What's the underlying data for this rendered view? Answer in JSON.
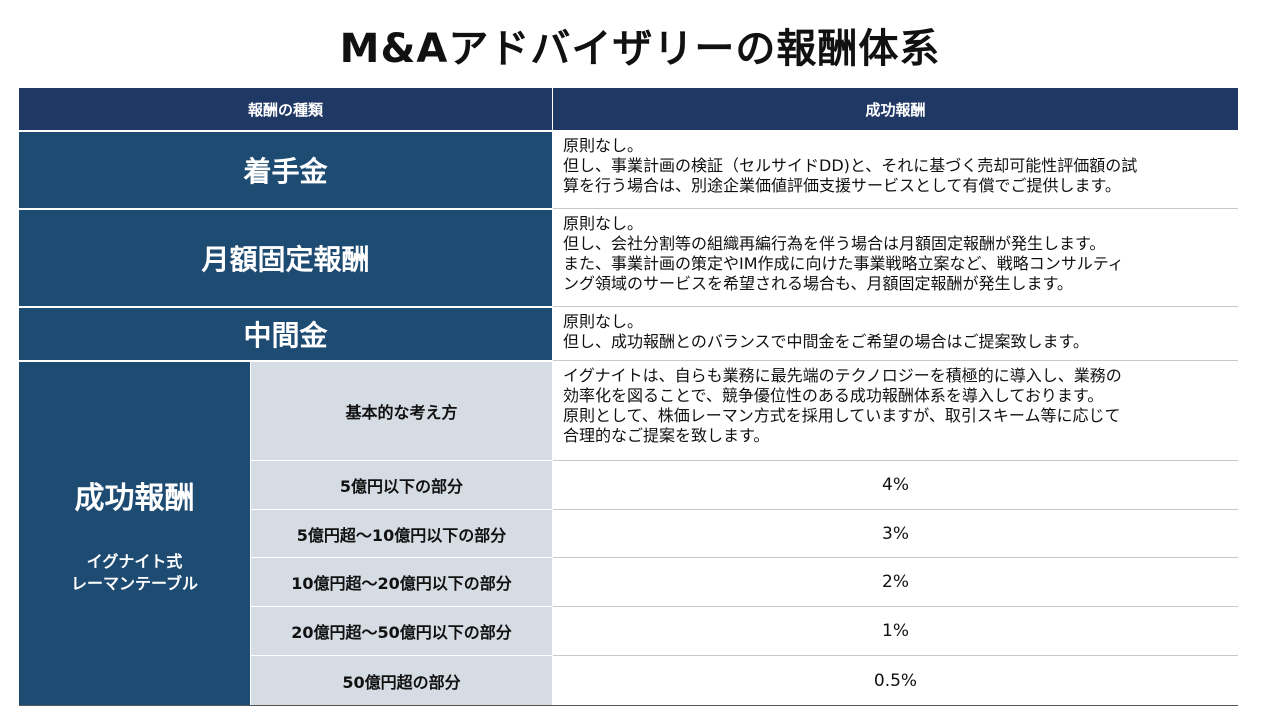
{
  "title": "M&Aアドバイザリーの報酬体系",
  "header": {
    "col1": "報酬の種類",
    "col2": "成功報酬"
  },
  "rows": [
    {
      "label": "着手金",
      "lines": [
        "原則なし。",
        "但し、事業計画の検証（セルサイドDD)と、それに基づく売却可能性評価額の試",
        "算を行う場合は、別途企業価値評価支援サービスとして有償でご提供します。"
      ]
    },
    {
      "label": "月額固定報酬",
      "lines": [
        "原則なし。",
        "但し、会社分割等の組織再編行為を伴う場合は月額固定報酬が発生します。",
        "また、事業計画の策定やIM作成に向けた事業戦略立案など、戦略コンサルティ",
        "ング領域のサービスを希望される場合も、月額固定報酬が発生します。"
      ]
    },
    {
      "label": "中間金",
      "lines": [
        "原則なし。",
        "但し、成功報酬とのバランスで中間金をご希望の場合はご提案致します。"
      ]
    }
  ],
  "success": {
    "label": "成功報酬",
    "sublabel_line1": "イグナイト式",
    "sublabel_line2": "レーマンテーブル",
    "basic_label": "基本的な考え方",
    "basic_lines": [
      "イグナイトは、自らも業務に最先端のテクノロジーを積極的に導入し、業務の",
      "効率化を図ることで、競争優位性のある成功報酬体系を導入しております。",
      "原則として、株価レーマン方式を採用していますが、取引スキーム等に応じて",
      "合理的なご提案を致します。"
    ],
    "tiers": [
      {
        "label": "5億円以下の部分",
        "rate": "4%"
      },
      {
        "label": "5億円超～10億円以下の部分",
        "rate": "3%"
      },
      {
        "label": "10億円超～20億円以下の部分",
        "rate": "2%"
      },
      {
        "label": "20億円超～50億円以下の部分",
        "rate": "1%"
      },
      {
        "label": "50億円超の部分",
        "rate": "0.5%"
      }
    ]
  }
}
